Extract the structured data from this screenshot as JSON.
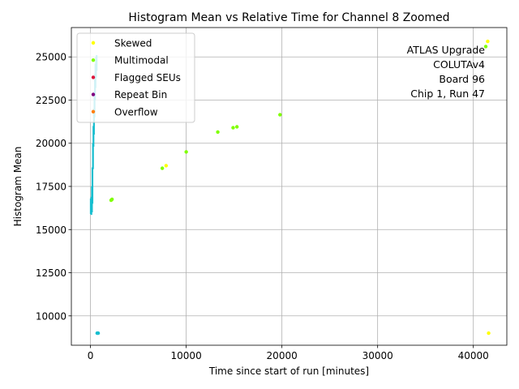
{
  "chart_data": {
    "type": "scatter",
    "title": "Histogram Mean vs Relative Time for Channel 8 Zoomed",
    "xlabel": "Time since start of run [minutes]",
    "ylabel": "Histogram Mean",
    "xlim": [
      -2000,
      43500
    ],
    "ylim": [
      8300,
      26700
    ],
    "xticks": [
      0,
      10000,
      20000,
      30000,
      40000
    ],
    "xtick_labels": [
      "0",
      "10000",
      "20000",
      "30000",
      "40000"
    ],
    "yticks": [
      10000,
      12500,
      15000,
      17500,
      20000,
      22500,
      25000
    ],
    "ytick_labels": [
      "10000",
      "12500",
      "15000",
      "17500",
      "20000",
      "22500",
      "25000"
    ],
    "grid": true,
    "legend_position": "upper left",
    "annotation_lines": [
      "ATLAS Upgrade",
      "COLUTAv4",
      "Board 96",
      "Chip 1, Run 47"
    ],
    "series": [
      {
        "name": "Skewed",
        "color": "#ffff00",
        "points": [
          {
            "x": 7900,
            "y": 18700
          },
          {
            "x": 41500,
            "y": 25900
          },
          {
            "x": 41600,
            "y": 9000
          },
          {
            "x": 300,
            "y": 25850
          }
        ]
      },
      {
        "name": "Multimodal",
        "color": "#7fff00",
        "points": [
          {
            "x": 2150,
            "y": 16700
          },
          {
            "x": 2250,
            "y": 16750
          },
          {
            "x": 7500,
            "y": 18550
          },
          {
            "x": 10000,
            "y": 19500
          },
          {
            "x": 13300,
            "y": 20650
          },
          {
            "x": 14900,
            "y": 20900
          },
          {
            "x": 15300,
            "y": 20950
          },
          {
            "x": 19800,
            "y": 21650
          },
          {
            "x": 41300,
            "y": 25600
          }
        ]
      },
      {
        "name": "Flagged SEUs",
        "color": "#dc143c",
        "points": []
      },
      {
        "name": "Repeat Bin",
        "color": "#800080",
        "points": []
      },
      {
        "name": "Overflow",
        "color": "#ff7f0e",
        "points": []
      },
      {
        "color": "#17becf",
        "points": [
          {
            "x": 700,
            "y": 9000
          },
          {
            "x": 800,
            "y": 9000
          }
        ],
        "segments": [
          {
            "x": 30,
            "y1": 15900,
            "y2": 16800
          },
          {
            "x": 90,
            "y1": 15850,
            "y2": 16900
          },
          {
            "x": 150,
            "y1": 16000,
            "y2": 17500
          },
          {
            "x": 200,
            "y1": 16500,
            "y2": 18600
          },
          {
            "x": 260,
            "y1": 18500,
            "y2": 20000
          },
          {
            "x": 310,
            "y1": 19800,
            "y2": 21000
          },
          {
            "x": 360,
            "y1": 20500,
            "y2": 22000
          },
          {
            "x": 420,
            "y1": 21500,
            "y2": 23000
          },
          {
            "x": 470,
            "y1": 22500,
            "y2": 24000
          },
          {
            "x": 520,
            "y1": 23200,
            "y2": 24600
          },
          {
            "x": 580,
            "y1": 23800,
            "y2": 25000
          },
          {
            "x": 640,
            "y1": 24200,
            "y2": 25100
          }
        ]
      }
    ]
  }
}
